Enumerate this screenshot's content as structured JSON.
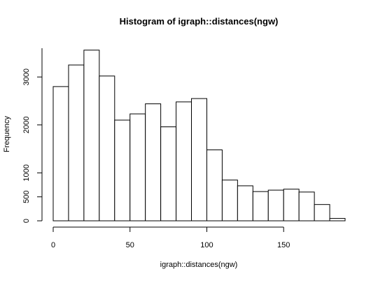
{
  "chart_data": {
    "type": "bar",
    "subtype": "histogram",
    "title": "Histogram of igraph::distances(ngw)",
    "xlabel": "igraph::distances(ngw)",
    "ylabel": "Frequency",
    "bin_edges": [
      0,
      10,
      20,
      30,
      40,
      50,
      60,
      70,
      80,
      90,
      100,
      110,
      120,
      130,
      140,
      150,
      160,
      170,
      180,
      190
    ],
    "values": [
      2800,
      3250,
      3560,
      3020,
      2100,
      2230,
      2440,
      1960,
      2480,
      2550,
      1480,
      850,
      730,
      610,
      640,
      660,
      600,
      340,
      50
    ],
    "xlim": [
      0,
      190
    ],
    "ylim": [
      0,
      3600
    ],
    "x_ticks": [
      0,
      50,
      100,
      150
    ],
    "x_tick_labels": [
      "0",
      "50",
      "100",
      "150"
    ],
    "y_ticks": [
      0,
      500,
      1000,
      2000,
      3000
    ],
    "y_tick_labels": [
      "0",
      "500",
      "1000",
      "2000",
      "3000"
    ],
    "grid": false,
    "legend": "none",
    "colors": {
      "bar_fill": "#ffffff",
      "bar_stroke": "#000000"
    }
  }
}
